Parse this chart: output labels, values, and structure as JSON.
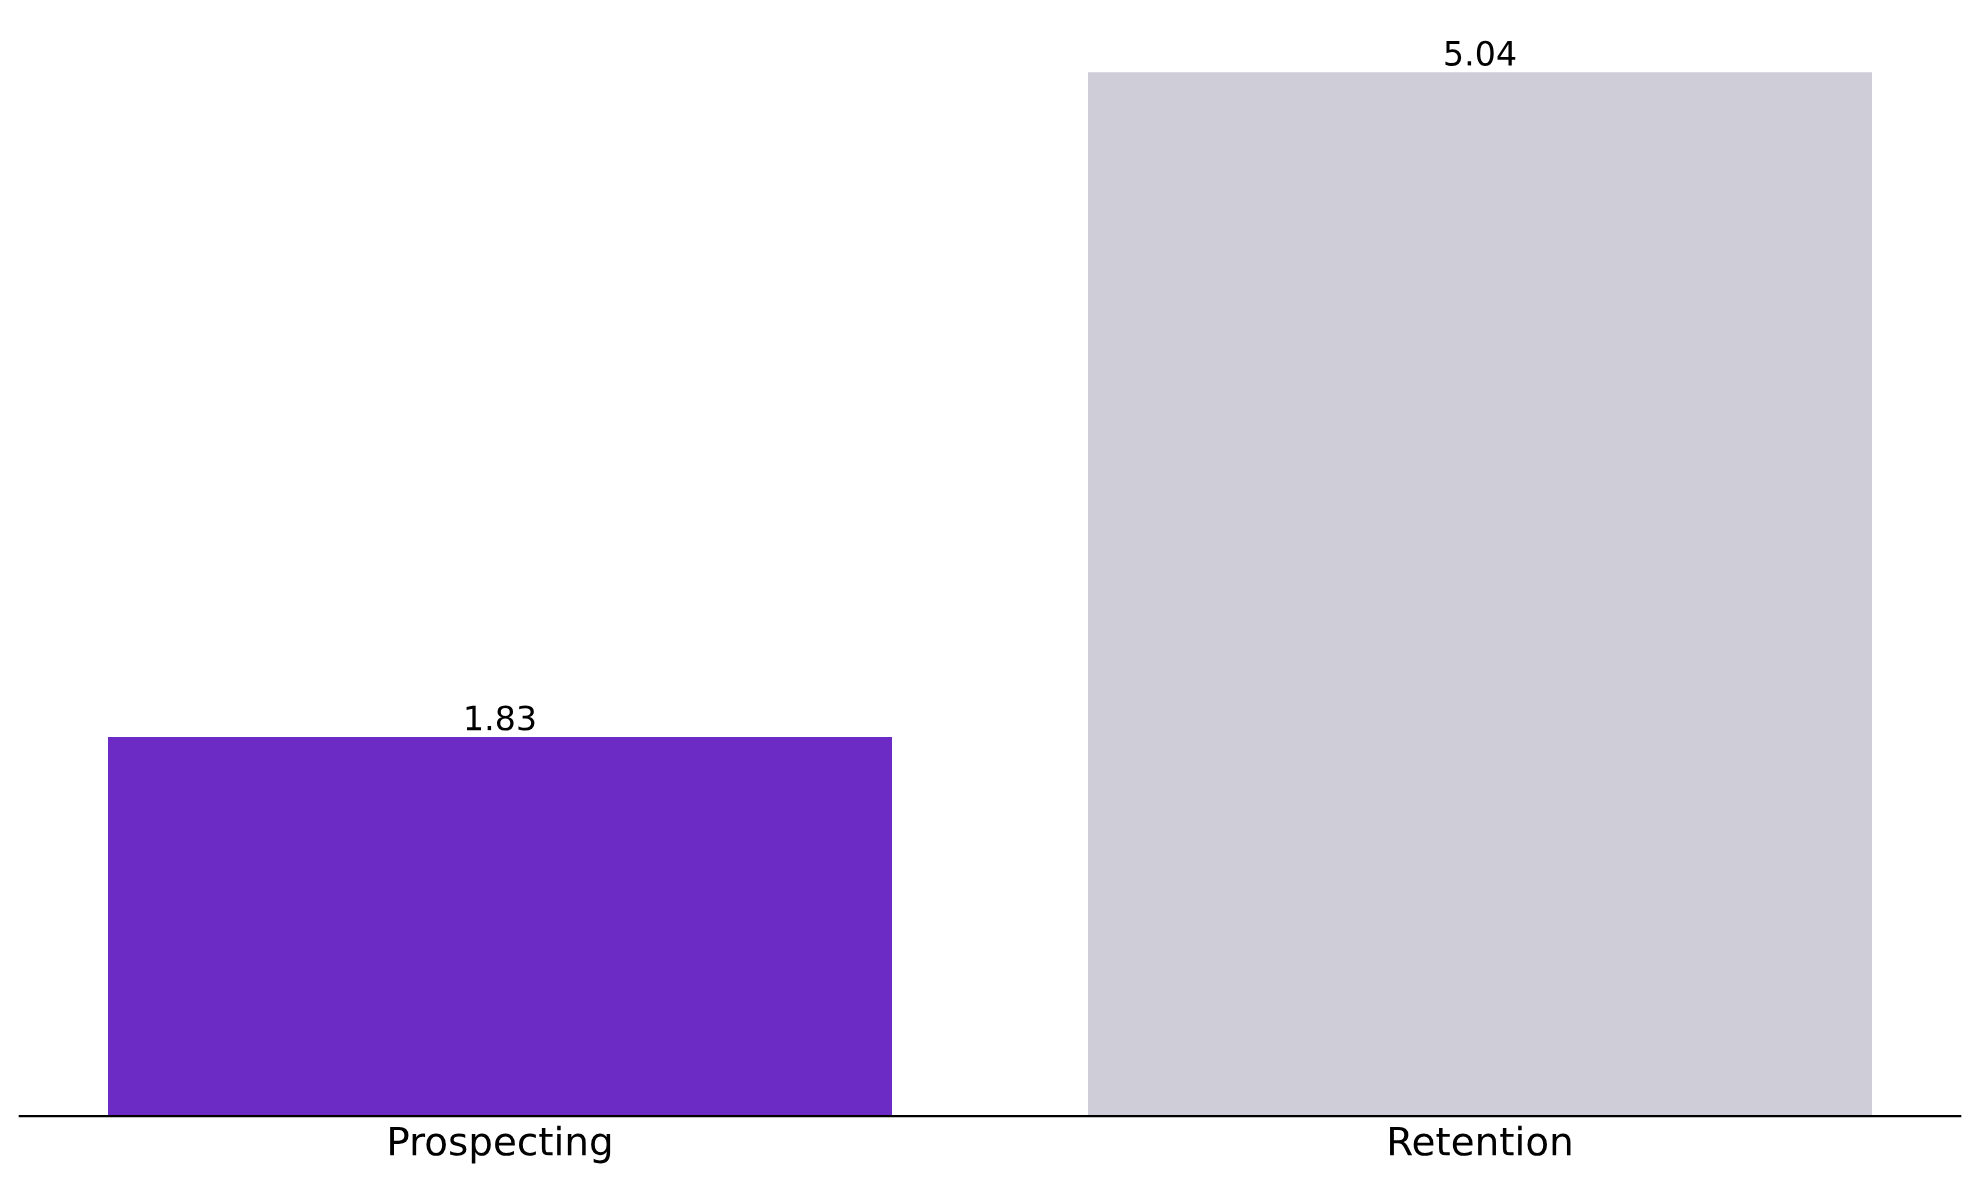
{
  "chart_data": {
    "type": "bar",
    "categories": [
      "Prospecting",
      "Retention"
    ],
    "values": [
      1.83,
      5.04
    ],
    "colors": [
      "#6c2bc4",
      "#cecdd8"
    ],
    "data_labels": true,
    "grid": false,
    "legend": false
  }
}
